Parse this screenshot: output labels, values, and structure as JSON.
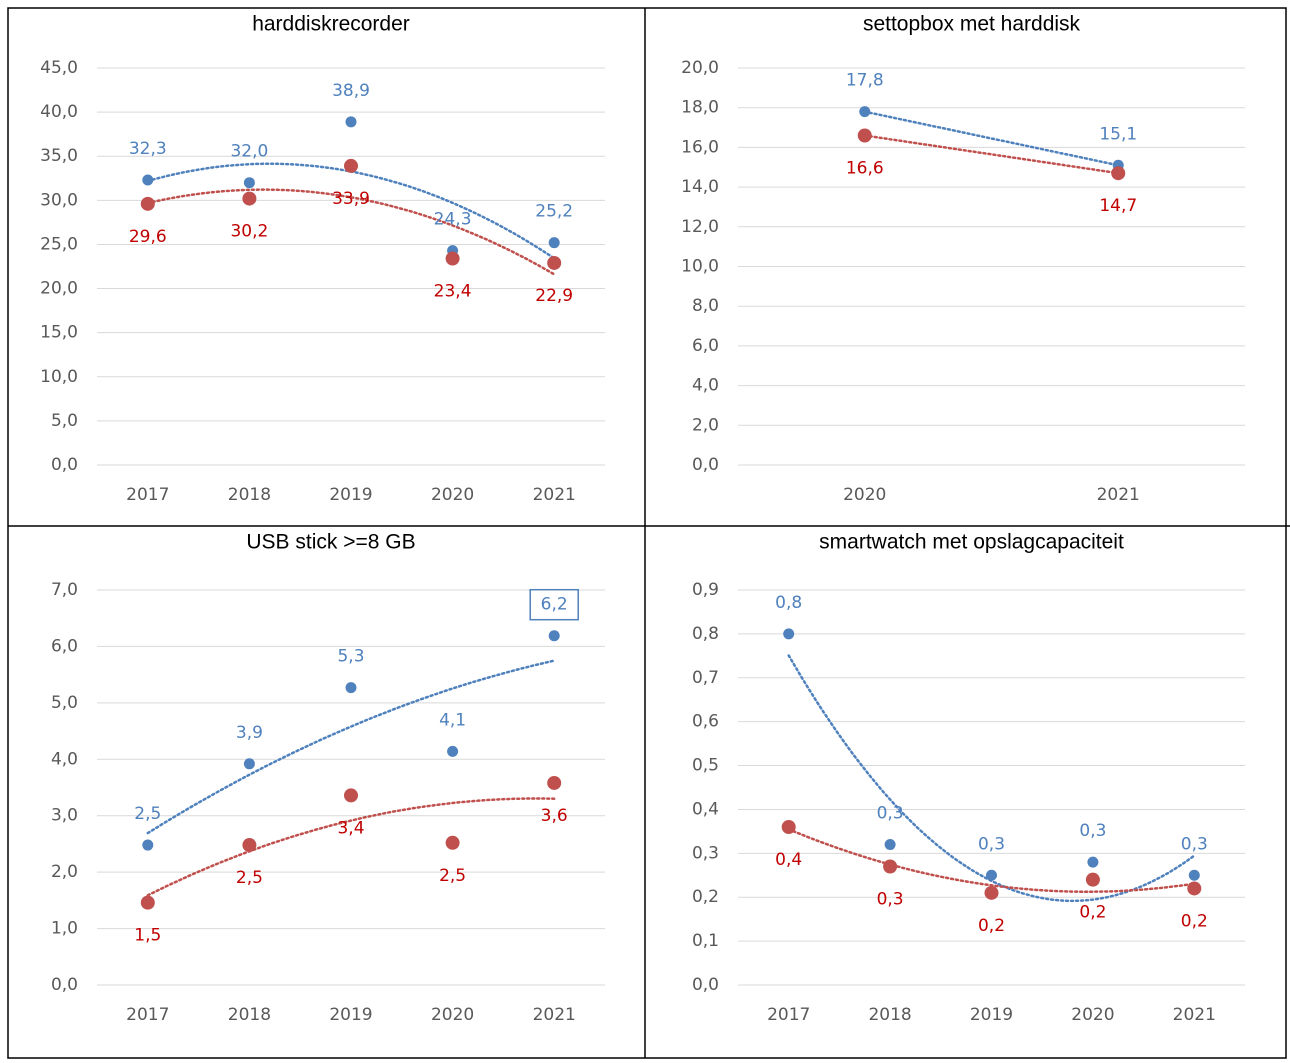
{
  "chart_data": [
    {
      "type": "scatter",
      "title": "harddiskrecorder",
      "categories": [
        "2017",
        "2018",
        "2019",
        "2020",
        "2021"
      ],
      "ylim": [
        0,
        45
      ],
      "yticks": [
        {
          "value": 0,
          "label": "0,0"
        },
        {
          "value": 5,
          "label": "5,0"
        },
        {
          "value": 10,
          "label": "10,0"
        },
        {
          "value": 15,
          "label": "15,0"
        },
        {
          "value": 20,
          "label": "20,0"
        },
        {
          "value": 25,
          "label": "25,0"
        },
        {
          "value": 30,
          "label": "30,0"
        },
        {
          "value": 35,
          "label": "35,0"
        },
        {
          "value": 40,
          "label": "40,0"
        },
        {
          "value": 45,
          "label": "45,0"
        }
      ],
      "grid": true,
      "trendline_order": 2,
      "series": [
        {
          "color": "#4f81bd",
          "values": [
            32.3,
            32.0,
            38.9,
            24.3,
            25.2
          ],
          "value_labels": [
            "32,3",
            "32,0",
            "38,9",
            "24,3",
            "25,2"
          ]
        },
        {
          "color": "#c0504d",
          "values": [
            29.6,
            30.2,
            33.9,
            23.4,
            22.9
          ],
          "value_labels": [
            "29,6",
            "30,2",
            "33,9",
            "23,4",
            "22,9"
          ]
        }
      ]
    },
    {
      "type": "scatter",
      "title": "settopbox met harddisk",
      "categories": [
        "2020",
        "2021"
      ],
      "ylim": [
        0,
        20
      ],
      "yticks": [
        {
          "value": 0,
          "label": "0,0"
        },
        {
          "value": 2,
          "label": "2,0"
        },
        {
          "value": 4,
          "label": "4,0"
        },
        {
          "value": 6,
          "label": "6,0"
        },
        {
          "value": 8,
          "label": "8,0"
        },
        {
          "value": 10,
          "label": "10,0"
        },
        {
          "value": 12,
          "label": "12,0"
        },
        {
          "value": 14,
          "label": "14,0"
        },
        {
          "value": 16,
          "label": "16,0"
        },
        {
          "value": 18,
          "label": "18,0"
        },
        {
          "value": 20,
          "label": "20,0"
        }
      ],
      "grid": true,
      "trendline_order": 1,
      "series": [
        {
          "color": "#4f81bd",
          "values": [
            17.8,
            15.1
          ],
          "value_labels": [
            "17,8",
            "15,1"
          ]
        },
        {
          "color": "#c0504d",
          "values": [
            16.6,
            14.7
          ],
          "value_labels": [
            "16,6",
            "14,7"
          ]
        }
      ]
    },
    {
      "type": "scatter",
      "title": "USB stick >=8 GB",
      "categories": [
        "2017",
        "2018",
        "2019",
        "2020",
        "2021"
      ],
      "ylim": [
        0,
        7
      ],
      "yticks": [
        {
          "value": 0,
          "label": "0,0"
        },
        {
          "value": 1,
          "label": "1,0"
        },
        {
          "value": 2,
          "label": "2,0"
        },
        {
          "value": 3,
          "label": "3,0"
        },
        {
          "value": 4,
          "label": "4,0"
        },
        {
          "value": 5,
          "label": "5,0"
        },
        {
          "value": 6,
          "label": "6,0"
        },
        {
          "value": 7,
          "label": "7,0"
        }
      ],
      "grid": true,
      "trendline_order": 2,
      "series": [
        {
          "color": "#4f81bd",
          "values": [
            2.48,
            3.92,
            5.27,
            4.14,
            6.19
          ],
          "value_labels": [
            "2,5",
            "3,9",
            "5,3",
            "4,1",
            "6,2"
          ],
          "boxed_labels": [
            4
          ]
        },
        {
          "color": "#c0504d",
          "values": [
            1.46,
            2.48,
            3.36,
            2.52,
            3.58
          ],
          "value_labels": [
            "1,5",
            "2,5",
            "3,4",
            "2,5",
            "3,6"
          ]
        }
      ]
    },
    {
      "type": "scatter",
      "title": "smartwatch met opslagcapaciteit",
      "categories": [
        "2017",
        "2018",
        "2019",
        "2020",
        "2021"
      ],
      "ylim": [
        0,
        0.9
      ],
      "yticks": [
        {
          "value": 0,
          "label": "0,0"
        },
        {
          "value": 0.1,
          "label": "0,1"
        },
        {
          "value": 0.2,
          "label": "0,2"
        },
        {
          "value": 0.3,
          "label": "0,3"
        },
        {
          "value": 0.4,
          "label": "0,4"
        },
        {
          "value": 0.5,
          "label": "0,5"
        },
        {
          "value": 0.6,
          "label": "0,6"
        },
        {
          "value": 0.7,
          "label": "0,7"
        },
        {
          "value": 0.8,
          "label": "0,8"
        },
        {
          "value": 0.9,
          "label": "0,9"
        }
      ],
      "grid": true,
      "trendline_order": 2,
      "series": [
        {
          "color": "#4f81bd",
          "values": [
            0.8,
            0.32,
            0.25,
            0.28,
            0.25
          ],
          "value_labels": [
            "0,8",
            "0,3",
            "0,3",
            "0,3",
            "0,3"
          ]
        },
        {
          "color": "#c0504d",
          "values": [
            0.36,
            0.27,
            0.21,
            0.24,
            0.22
          ],
          "value_labels": [
            "0,4",
            "0,3",
            "0,2",
            "0,2",
            "0,2"
          ]
        }
      ]
    }
  ]
}
